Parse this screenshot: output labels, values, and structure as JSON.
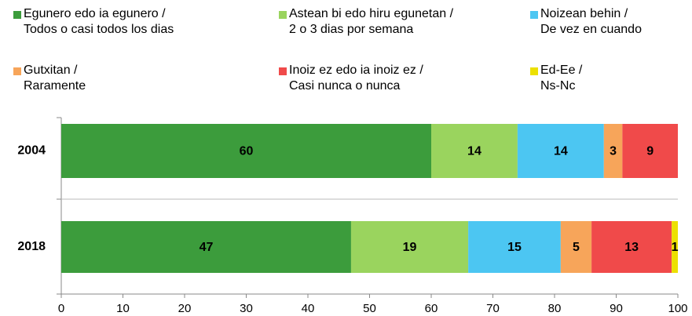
{
  "chart_data": {
    "type": "stacked-bar-horizontal",
    "categories": [
      "2004",
      "2018"
    ],
    "series": [
      {
        "name": "Egunero edo ia egunero /\nTodos o casi todos los dias",
        "color": "#3c9c3c",
        "values": [
          60,
          47
        ]
      },
      {
        "name": "Astean bi edo hiru egunetan /\n2 o 3 dias por semana",
        "color": "#9ad45e",
        "values": [
          14,
          19
        ]
      },
      {
        "name": "Noizean behin /\nDe vez en cuando",
        "color": "#4cc6f2",
        "values": [
          14,
          15
        ]
      },
      {
        "name": "Gutxitan /\nRaramente",
        "color": "#f7a55a",
        "values": [
          3,
          5
        ]
      },
      {
        "name": "Inoiz ez edo ia inoiz ez /\nCasi nunca o nunca",
        "color": "#f04a4a",
        "values": [
          9,
          13
        ]
      },
      {
        "name": "Ed-Ee /\nNs-Nc",
        "color": "#ece000",
        "values": [
          null,
          1
        ]
      }
    ],
    "xlim": [
      0,
      100
    ],
    "xticks": [
      0,
      10,
      20,
      30,
      40,
      50,
      60,
      70,
      80,
      90,
      100
    ]
  }
}
